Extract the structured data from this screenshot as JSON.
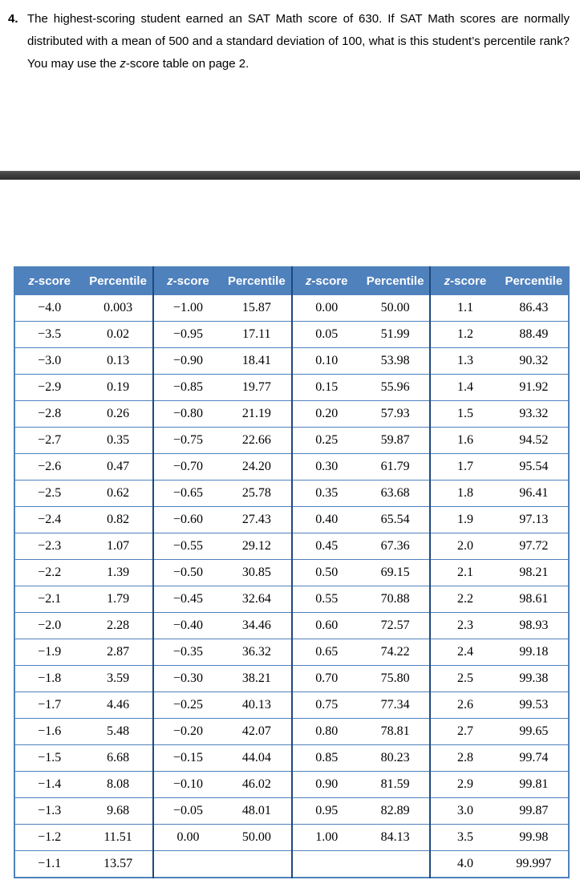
{
  "question": {
    "number": "4.",
    "text_main": "The highest-scoring student earned an SAT Math score of 630. If SAT Math scores are normally distributed with a mean of 500 and a standard deviation of 100, what is this student’s percentile rank? You may use the ",
    "text_z": "z",
    "text_after": "-score table on page 2."
  },
  "colors": {
    "header_bg": "#4F81BD",
    "header_text": "#FFFFFF",
    "grid_line": "#4F81BD",
    "group_separator": "#1F497D",
    "divider_bar": "#3B3B3B",
    "text": "#000000"
  },
  "ztable": {
    "header": {
      "z_italic": "z",
      "z_rest": "-score",
      "percentile": "Percentile"
    },
    "column_headers": [
      "z-score",
      "Percentile",
      "z-score",
      "Percentile",
      "z-score",
      "Percentile",
      "z-score",
      "Percentile"
    ],
    "rows": [
      [
        "−4.0",
        "0.003",
        "−1.00",
        "15.87",
        "0.00",
        "50.00",
        "1.1",
        "86.43"
      ],
      [
        "−3.5",
        "0.02",
        "−0.95",
        "17.11",
        "0.05",
        "51.99",
        "1.2",
        "88.49"
      ],
      [
        "−3.0",
        "0.13",
        "−0.90",
        "18.41",
        "0.10",
        "53.98",
        "1.3",
        "90.32"
      ],
      [
        "−2.9",
        "0.19",
        "−0.85",
        "19.77",
        "0.15",
        "55.96",
        "1.4",
        "91.92"
      ],
      [
        "−2.8",
        "0.26",
        "−0.80",
        "21.19",
        "0.20",
        "57.93",
        "1.5",
        "93.32"
      ],
      [
        "−2.7",
        "0.35",
        "−0.75",
        "22.66",
        "0.25",
        "59.87",
        "1.6",
        "94.52"
      ],
      [
        "−2.6",
        "0.47",
        "−0.70",
        "24.20",
        "0.30",
        "61.79",
        "1.7",
        "95.54"
      ],
      [
        "−2.5",
        "0.62",
        "−0.65",
        "25.78",
        "0.35",
        "63.68",
        "1.8",
        "96.41"
      ],
      [
        "−2.4",
        "0.82",
        "−0.60",
        "27.43",
        "0.40",
        "65.54",
        "1.9",
        "97.13"
      ],
      [
        "−2.3",
        "1.07",
        "−0.55",
        "29.12",
        "0.45",
        "67.36",
        "2.0",
        "97.72"
      ],
      [
        "−2.2",
        "1.39",
        "−0.50",
        "30.85",
        "0.50",
        "69.15",
        "2.1",
        "98.21"
      ],
      [
        "−2.1",
        "1.79",
        "−0.45",
        "32.64",
        "0.55",
        "70.88",
        "2.2",
        "98.61"
      ],
      [
        "−2.0",
        "2.28",
        "−0.40",
        "34.46",
        "0.60",
        "72.57",
        "2.3",
        "98.93"
      ],
      [
        "−1.9",
        "2.87",
        "−0.35",
        "36.32",
        "0.65",
        "74.22",
        "2.4",
        "99.18"
      ],
      [
        "−1.8",
        "3.59",
        "−0.30",
        "38.21",
        "0.70",
        "75.80",
        "2.5",
        "99.38"
      ],
      [
        "−1.7",
        "4.46",
        "−0.25",
        "40.13",
        "0.75",
        "77.34",
        "2.6",
        "99.53"
      ],
      [
        "−1.6",
        "5.48",
        "−0.20",
        "42.07",
        "0.80",
        "78.81",
        "2.7",
        "99.65"
      ],
      [
        "−1.5",
        "6.68",
        "−0.15",
        "44.04",
        "0.85",
        "80.23",
        "2.8",
        "99.74"
      ],
      [
        "−1.4",
        "8.08",
        "−0.10",
        "46.02",
        "0.90",
        "81.59",
        "2.9",
        "99.81"
      ],
      [
        "−1.3",
        "9.68",
        "−0.05",
        "48.01",
        "0.95",
        "82.89",
        "3.0",
        "99.87"
      ],
      [
        "−1.2",
        "11.51",
        "0.00",
        "50.00",
        "1.00",
        "84.13",
        "3.5",
        "99.98"
      ],
      [
        "−1.1",
        "13.57",
        "",
        "",
        "",
        "",
        "4.0",
        "99.997"
      ]
    ]
  }
}
